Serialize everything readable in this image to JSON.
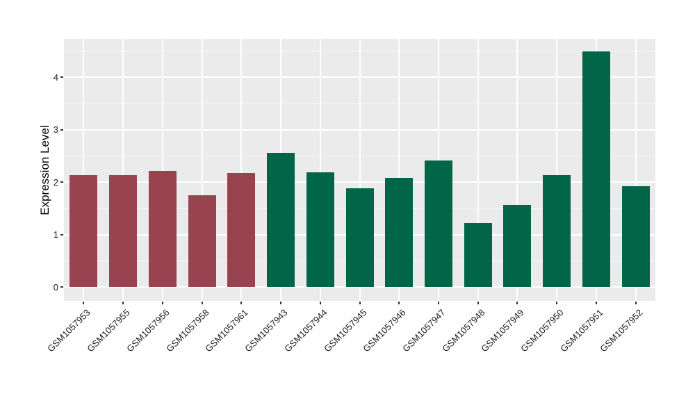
{
  "chart_data": {
    "type": "bar",
    "title": "",
    "xlabel": "",
    "ylabel": "Expression Level",
    "legend_position": "none",
    "grid": true,
    "panel_background": "#ebebeb",
    "grid_color": "#ffffff",
    "tick_color": "#333333",
    "text_color": "#1a1a1a",
    "y_ticks": [
      0,
      1,
      2,
      3,
      4
    ],
    "y_tick_labels": [
      "0",
      "1",
      "2",
      "3",
      "4"
    ],
    "y_minor_ticks": [
      0.5,
      1.5,
      2.5,
      3.5,
      4.5
    ],
    "ylim": [
      -0.26,
      4.73
    ],
    "group_colors": {
      "maroon": "#9a4350",
      "green": "#006647"
    },
    "categories": [
      "GSM1057953",
      "GSM1057955",
      "GSM1057956",
      "GSM1057958",
      "GSM1057961",
      "GSM1057943",
      "GSM1057944",
      "GSM1057945",
      "GSM1057946",
      "GSM1057947",
      "GSM1057948",
      "GSM1057949",
      "GSM1057950",
      "GSM1057951",
      "GSM1057952"
    ],
    "values": [
      2.14,
      2.14,
      2.21,
      1.75,
      2.17,
      2.56,
      2.19,
      1.88,
      2.08,
      2.41,
      1.22,
      1.57,
      2.14,
      4.49,
      1.93
    ],
    "bar_groups": [
      "maroon",
      "maroon",
      "maroon",
      "maroon",
      "maroon",
      "green",
      "green",
      "green",
      "green",
      "green",
      "green",
      "green",
      "green",
      "green",
      "green"
    ]
  }
}
